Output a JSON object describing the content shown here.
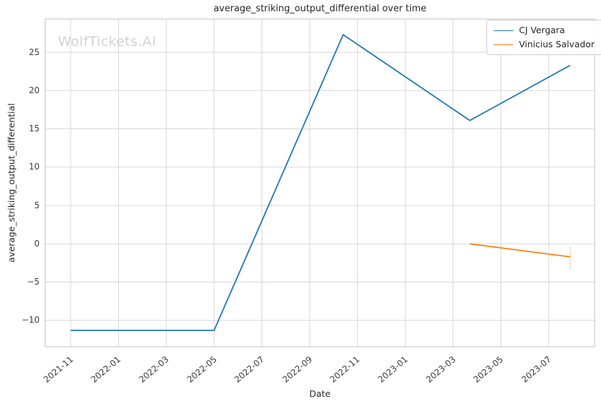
{
  "title": "average_striking_output_differential over time",
  "watermark": "WolfTickets.AI",
  "axes": {
    "xlabel": "Date",
    "ylabel": "average_striking_output_differential",
    "x_ticks": [
      "2021-11",
      "2022-01",
      "2022-03",
      "2022-05",
      "2022-07",
      "2022-09",
      "2022-11",
      "2023-01",
      "2023-03",
      "2023-05",
      "2023-07"
    ],
    "y_ticks": [
      {
        "v": -10,
        "label": "−10"
      },
      {
        "v": -5,
        "label": "−5"
      },
      {
        "v": 0,
        "label": "0"
      },
      {
        "v": 5,
        "label": "5"
      },
      {
        "v": 10,
        "label": "10"
      },
      {
        "v": 15,
        "label": "15"
      },
      {
        "v": 20,
        "label": "20"
      },
      {
        "v": 25,
        "label": "25"
      }
    ]
  },
  "legend": [
    {
      "label": "CJ Vergara",
      "color": "#1f77b4"
    },
    {
      "label": "Vinicius Salvador",
      "color": "#ff7f0e"
    }
  ],
  "colors": {
    "grid": "#d7d7d7",
    "border": "#cccccc",
    "series_blue": "#1f77b4",
    "series_orange": "#ff7f0e",
    "error_bar": "rgba(255,127,14,0.3)"
  },
  "chart_data": {
    "type": "line",
    "title": "average_striking_output_differential over time",
    "xlabel": "Date",
    "ylabel": "average_striking_output_differential",
    "x_tick_labels": [
      "2021-11",
      "2022-01",
      "2022-03",
      "2022-05",
      "2022-07",
      "2022-09",
      "2022-11",
      "2023-01",
      "2023-03",
      "2023-05",
      "2023-07"
    ],
    "ylim": [
      -13.5,
      29.3
    ],
    "xlim_months_from_2021_11": [
      -1.13,
      21.95
    ],
    "grid": true,
    "legend_position": "upper right",
    "series": [
      {
        "name": "CJ Vergara",
        "color": "#1f77b4",
        "x": [
          "2021-11-01",
          "2022-05-01",
          "2022-10-13",
          "2023-03-22",
          "2023-07-28"
        ],
        "x_months": [
          0,
          6,
          11.4,
          16.7,
          20.9
        ],
        "values": [
          -11.3,
          -11.3,
          27.3,
          16.1,
          23.3
        ]
      },
      {
        "name": "Vinicius Salvador",
        "color": "#ff7f0e",
        "x": [
          "2023-03-22",
          "2023-07-28"
        ],
        "x_months": [
          16.7,
          20.9
        ],
        "values": [
          0,
          -1.7
        ],
        "error_bar_last": {
          "hi": -0.3,
          "lo": -3.4
        }
      }
    ]
  },
  "layout_hints": {
    "x_tick_rotation_deg": 40
  }
}
